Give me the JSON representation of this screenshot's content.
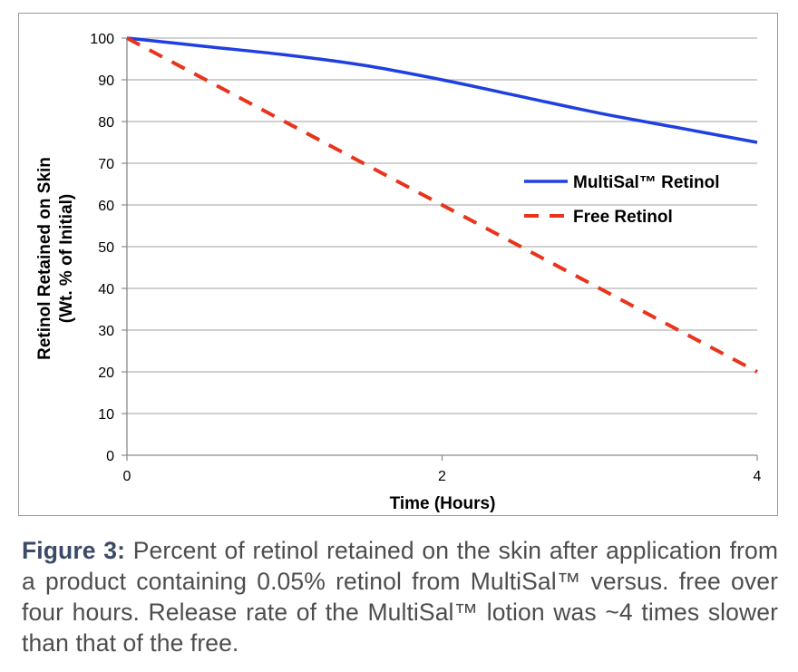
{
  "chart_data": {
    "type": "line",
    "xlabel": "Time (Hours)",
    "ylabel_line1": "Retinol Retained on Skin",
    "ylabel_line2": "(Wt. % of Initial)",
    "xlim": [
      0,
      4
    ],
    "ylim": [
      0,
      100
    ],
    "x_ticks": [
      0,
      2,
      4
    ],
    "y_ticks": [
      0,
      10,
      20,
      30,
      40,
      50,
      60,
      70,
      80,
      90,
      100
    ],
    "grid": true,
    "legend_position": "right",
    "series": [
      {
        "name": "MultiSal™ Retinol",
        "color": "#1f3fe0",
        "style": "solid",
        "x": [
          0,
          0.5,
          1,
          1.5,
          2,
          2.5,
          3,
          3.5,
          4
        ],
        "y": [
          100,
          98,
          96,
          93.5,
          90,
          86,
          82,
          78.5,
          75
        ]
      },
      {
        "name": "Free Retinol",
        "color": "#e8341c",
        "style": "dashed",
        "x": [
          0,
          4
        ],
        "y": [
          100,
          20
        ]
      }
    ]
  },
  "caption": {
    "label": "Figure 3:",
    "text": " Percent of retinol retained on the skin after application from a product containing 0.05% retinol from MultiSal™ versus. free over four hours. Release rate of the MultiSal™ lotion was ~4 times slower than that of the free."
  }
}
